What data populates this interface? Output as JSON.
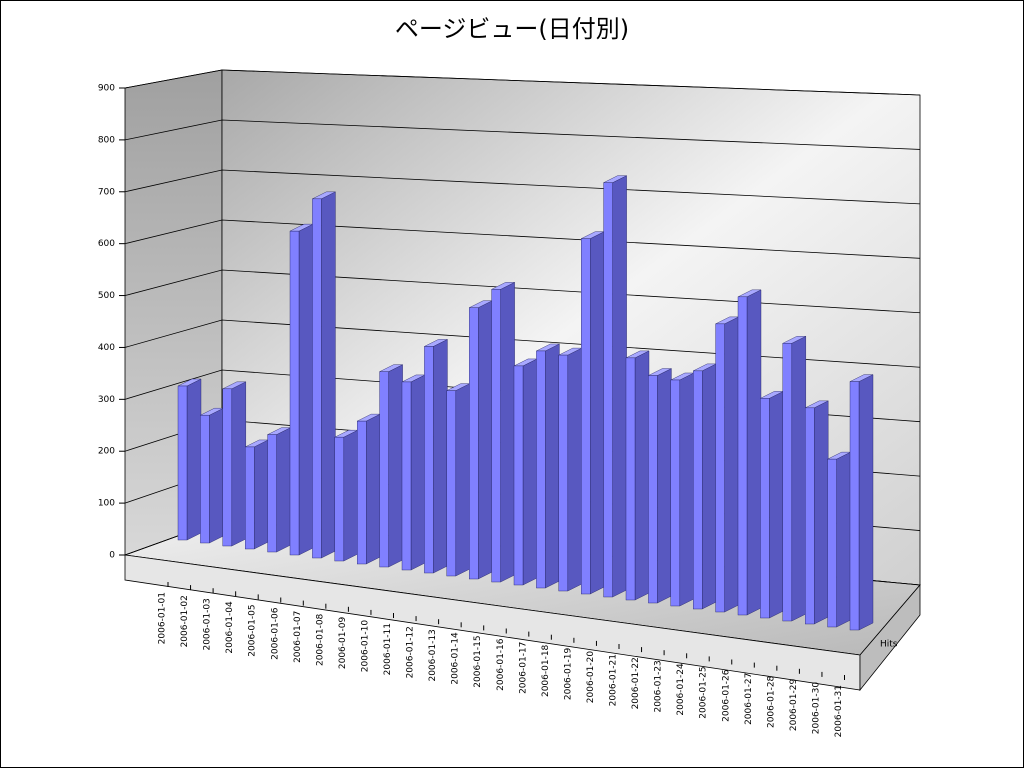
{
  "chart_data": {
    "type": "bar3d",
    "title": "ページビュー(日付別)",
    "categories": [
      "2006-01-01",
      "2006-01-02",
      "2006-01-03",
      "2006-01-04",
      "2006-01-05",
      "2006-01-06",
      "2006-01-07",
      "2006-01-08",
      "2006-01-09",
      "2006-01-10",
      "2006-01-11",
      "2006-01-12",
      "2006-01-13",
      "2006-01-14",
      "2006-01-15",
      "2006-01-16",
      "2006-01-17",
      "2006-01-18",
      "2006-01-19",
      "2006-01-20",
      "2006-01-21",
      "2006-01-22",
      "2006-01-23",
      "2006-01-24",
      "2006-01-25",
      "2006-01-26",
      "2006-01-27",
      "2006-01-28",
      "2006-01-29",
      "2006-01-30",
      "2006-01-31"
    ],
    "series": [
      {
        "name": "Hits",
        "color": "#8080ff",
        "values": [
          280,
          230,
          280,
          180,
          205,
          560,
          615,
          210,
          240,
          325,
          310,
          370,
          300,
          435,
          465,
          345,
          370,
          365,
          545,
          630,
          365,
          340,
          335,
          350,
          420,
          460,
          315,
          395,
          305,
          235,
          345
        ]
      }
    ],
    "ylim": [
      0,
      900
    ],
    "yticks": [
      0,
      100,
      200,
      300,
      400,
      500,
      600,
      700,
      800,
      900
    ],
    "grid": true
  }
}
